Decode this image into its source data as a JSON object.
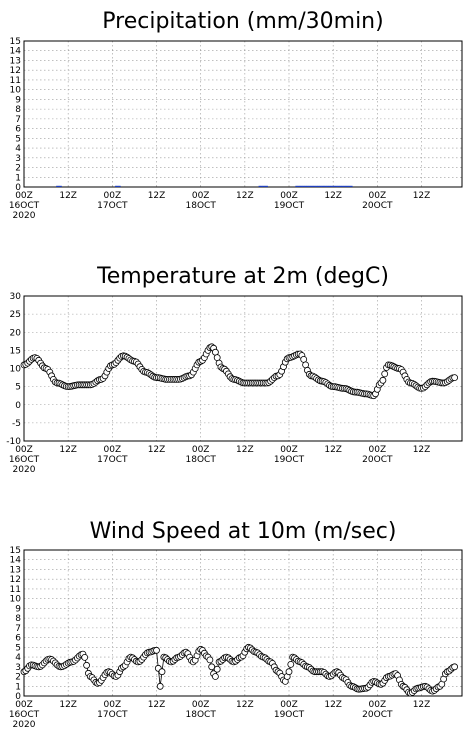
{
  "chart_data": [
    {
      "type": "bar",
      "title": "Precipitation (mm/30min)",
      "ylim": [
        0,
        15
      ],
      "yticks": [
        0,
        1,
        2,
        3,
        4,
        5,
        6,
        7,
        8,
        9,
        10,
        11,
        12,
        13,
        14,
        15
      ],
      "xlim_hours": [
        0,
        108
      ],
      "xticks": [
        {
          "h": 0,
          "l1": "00Z",
          "l2": "16OCT",
          "l3": "2020"
        },
        {
          "h": 12,
          "l1": "12Z",
          "l2": "",
          "l3": ""
        },
        {
          "h": 24,
          "l1": "00Z",
          "l2": "17OCT",
          "l3": ""
        },
        {
          "h": 36,
          "l1": "12Z",
          "l2": "",
          "l3": ""
        },
        {
          "h": 48,
          "l1": "00Z",
          "l2": "18OCT",
          "l3": ""
        },
        {
          "h": 60,
          "l1": "12Z",
          "l2": "",
          "l3": ""
        },
        {
          "h": 72,
          "l1": "00Z",
          "l2": "19OCT",
          "l3": ""
        },
        {
          "h": 84,
          "l1": "12Z",
          "l2": "",
          "l3": ""
        },
        {
          "h": 96,
          "l1": "00Z",
          "l2": "20OCT",
          "l3": ""
        },
        {
          "h": 108,
          "l1": "12Z",
          "l2": "",
          "l3": ""
        }
      ],
      "bar_color": "#1f3fbf",
      "x_hours": [
        9,
        9.5,
        10,
        25,
        25.5,
        26,
        64,
        64.5,
        65,
        65.5,
        66,
        74,
        74.5,
        75,
        75.5,
        76,
        76.5,
        77,
        77.5,
        78,
        78.5,
        79,
        79.5,
        80,
        80.5,
        81,
        81.5,
        82,
        82.5,
        83,
        83.5,
        84,
        84.5,
        85,
        85.5,
        86,
        86.5,
        87,
        87.5,
        88,
        88.5,
        89
      ],
      "values": [
        0.05,
        0.05,
        0.05,
        0.05,
        0.08,
        0.05,
        0.05,
        0.05,
        0.05,
        0.05,
        0.05,
        0.05,
        0.05,
        0.05,
        0.08,
        0.08,
        0.05,
        0.05,
        0.05,
        0.05,
        0.05,
        0.08,
        0.08,
        0.05,
        0.05,
        0.05,
        0.08,
        0.05,
        0.05,
        0.05,
        0.05,
        0.08,
        0.05,
        0.05,
        0.05,
        0.05,
        0.05,
        0.05,
        0.05,
        0.05,
        0.05,
        0.05
      ]
    },
    {
      "type": "line",
      "marker": "open-circle",
      "title": "Temperature at 2m (degC)",
      "ylim": [
        -10,
        30
      ],
      "yticks": [
        -10,
        -5,
        0,
        5,
        10,
        15,
        20,
        25,
        30
      ],
      "xlim_hours": [
        0,
        108
      ],
      "xticks": [
        {
          "h": 0,
          "l1": "00Z",
          "l2": "16OCT",
          "l3": "2020"
        },
        {
          "h": 12,
          "l1": "12Z",
          "l2": "",
          "l3": ""
        },
        {
          "h": 24,
          "l1": "00Z",
          "l2": "17OCT",
          "l3": ""
        },
        {
          "h": 36,
          "l1": "12Z",
          "l2": "",
          "l3": ""
        },
        {
          "h": 48,
          "l1": "00Z",
          "l2": "18OCT",
          "l3": ""
        },
        {
          "h": 60,
          "l1": "12Z",
          "l2": "",
          "l3": ""
        },
        {
          "h": 72,
          "l1": "00Z",
          "l2": "19OCT",
          "l3": ""
        },
        {
          "h": 84,
          "l1": "12Z",
          "l2": "",
          "l3": ""
        },
        {
          "h": 96,
          "l1": "00Z",
          "l2": "20OCT",
          "l3": ""
        },
        {
          "h": 108,
          "l1": "12Z",
          "l2": "",
          "l3": ""
        }
      ],
      "x_hours_step": 0.5,
      "keyframes": [
        [
          0,
          11
        ],
        [
          3,
          13
        ],
        [
          6,
          10
        ],
        [
          9,
          6
        ],
        [
          12,
          5
        ],
        [
          15,
          5.5
        ],
        [
          18,
          5.5
        ],
        [
          21,
          7
        ],
        [
          24,
          11
        ],
        [
          27,
          13.5
        ],
        [
          30,
          12
        ],
        [
          33,
          9
        ],
        [
          36,
          7.5
        ],
        [
          39,
          7
        ],
        [
          42,
          7
        ],
        [
          45,
          8
        ],
        [
          48,
          12
        ],
        [
          51,
          16
        ],
        [
          54,
          10
        ],
        [
          57,
          7
        ],
        [
          60,
          6
        ],
        [
          63,
          6
        ],
        [
          66,
          6
        ],
        [
          69,
          8
        ],
        [
          72,
          13
        ],
        [
          75,
          14
        ],
        [
          78,
          8
        ],
        [
          81,
          6.5
        ],
        [
          84,
          5
        ],
        [
          87,
          4.5
        ],
        [
          90,
          3.5
        ],
        [
          93,
          3
        ],
        [
          95,
          2.5
        ],
        [
          97,
          6
        ],
        [
          99,
          11
        ],
        [
          102,
          10
        ],
        [
          105,
          6
        ],
        [
          108,
          4.5
        ],
        [
          111,
          6.5
        ],
        [
          114,
          6
        ],
        [
          117,
          7.5
        ]
      ]
    },
    {
      "type": "line",
      "marker": "open-circle",
      "title": "Wind Speed at 10m (m/sec)",
      "ylim": [
        0,
        15
      ],
      "yticks": [
        0,
        1,
        2,
        3,
        4,
        5,
        6,
        7,
        8,
        9,
        10,
        11,
        12,
        13,
        14,
        15
      ],
      "xlim_hours": [
        0,
        108
      ],
      "xticks": [
        {
          "h": 0,
          "l1": "00Z",
          "l2": "16OCT",
          "l3": "2020"
        },
        {
          "h": 12,
          "l1": "12Z",
          "l2": "",
          "l3": ""
        },
        {
          "h": 24,
          "l1": "00Z",
          "l2": "17OCT",
          "l3": ""
        },
        {
          "h": 36,
          "l1": "12Z",
          "l2": "",
          "l3": ""
        },
        {
          "h": 48,
          "l1": "00Z",
          "l2": "18OCT",
          "l3": ""
        },
        {
          "h": 60,
          "l1": "12Z",
          "l2": "",
          "l3": ""
        },
        {
          "h": 72,
          "l1": "00Z",
          "l2": "19OCT",
          "l3": ""
        },
        {
          "h": 84,
          "l1": "12Z",
          "l2": "",
          "l3": ""
        },
        {
          "h": 96,
          "l1": "00Z",
          "l2": "20OCT",
          "l3": ""
        },
        {
          "h": 108,
          "l1": "12Z",
          "l2": "",
          "l3": ""
        }
      ],
      "x_hours_step": 0.5,
      "keyframes": [
        [
          0,
          2.5
        ],
        [
          2,
          3.2
        ],
        [
          4,
          3
        ],
        [
          7,
          3.8
        ],
        [
          10,
          3
        ],
        [
          13,
          3.5
        ],
        [
          16,
          4.3
        ],
        [
          18,
          2
        ],
        [
          20,
          1.3
        ],
        [
          23,
          2.5
        ],
        [
          25,
          2
        ],
        [
          27,
          3
        ],
        [
          29,
          4
        ],
        [
          31,
          3.5
        ],
        [
          34,
          4.5
        ],
        [
          36,
          4.7
        ],
        [
          37,
          1
        ],
        [
          38,
          4
        ],
        [
          40,
          3.5
        ],
        [
          42,
          4
        ],
        [
          44,
          4.5
        ],
        [
          46,
          3.5
        ],
        [
          48,
          4.8
        ],
        [
          50,
          4
        ],
        [
          52,
          2
        ],
        [
          53,
          3.5
        ],
        [
          55,
          4
        ],
        [
          57,
          3.5
        ],
        [
          59,
          4
        ],
        [
          61,
          5
        ],
        [
          63,
          4.5
        ],
        [
          65,
          4
        ],
        [
          67,
          3.5
        ],
        [
          69,
          2.5
        ],
        [
          71,
          1.5
        ],
        [
          72,
          2.5
        ],
        [
          73,
          4
        ],
        [
          75,
          3.5
        ],
        [
          77,
          3
        ],
        [
          79,
          2.5
        ],
        [
          81,
          2.5
        ],
        [
          83,
          2
        ],
        [
          85,
          2.5
        ],
        [
          87,
          1.8
        ],
        [
          89,
          1
        ],
        [
          91,
          0.7
        ],
        [
          93,
          0.8
        ],
        [
          95,
          1.5
        ],
        [
          97,
          1.2
        ],
        [
          99,
          2
        ],
        [
          101,
          2.3
        ],
        [
          103,
          1
        ],
        [
          105,
          0.3
        ],
        [
          107,
          0.8
        ],
        [
          109,
          1
        ],
        [
          111,
          0.5
        ],
        [
          113,
          1
        ],
        [
          115,
          2.5
        ],
        [
          117,
          3
        ]
      ]
    }
  ]
}
